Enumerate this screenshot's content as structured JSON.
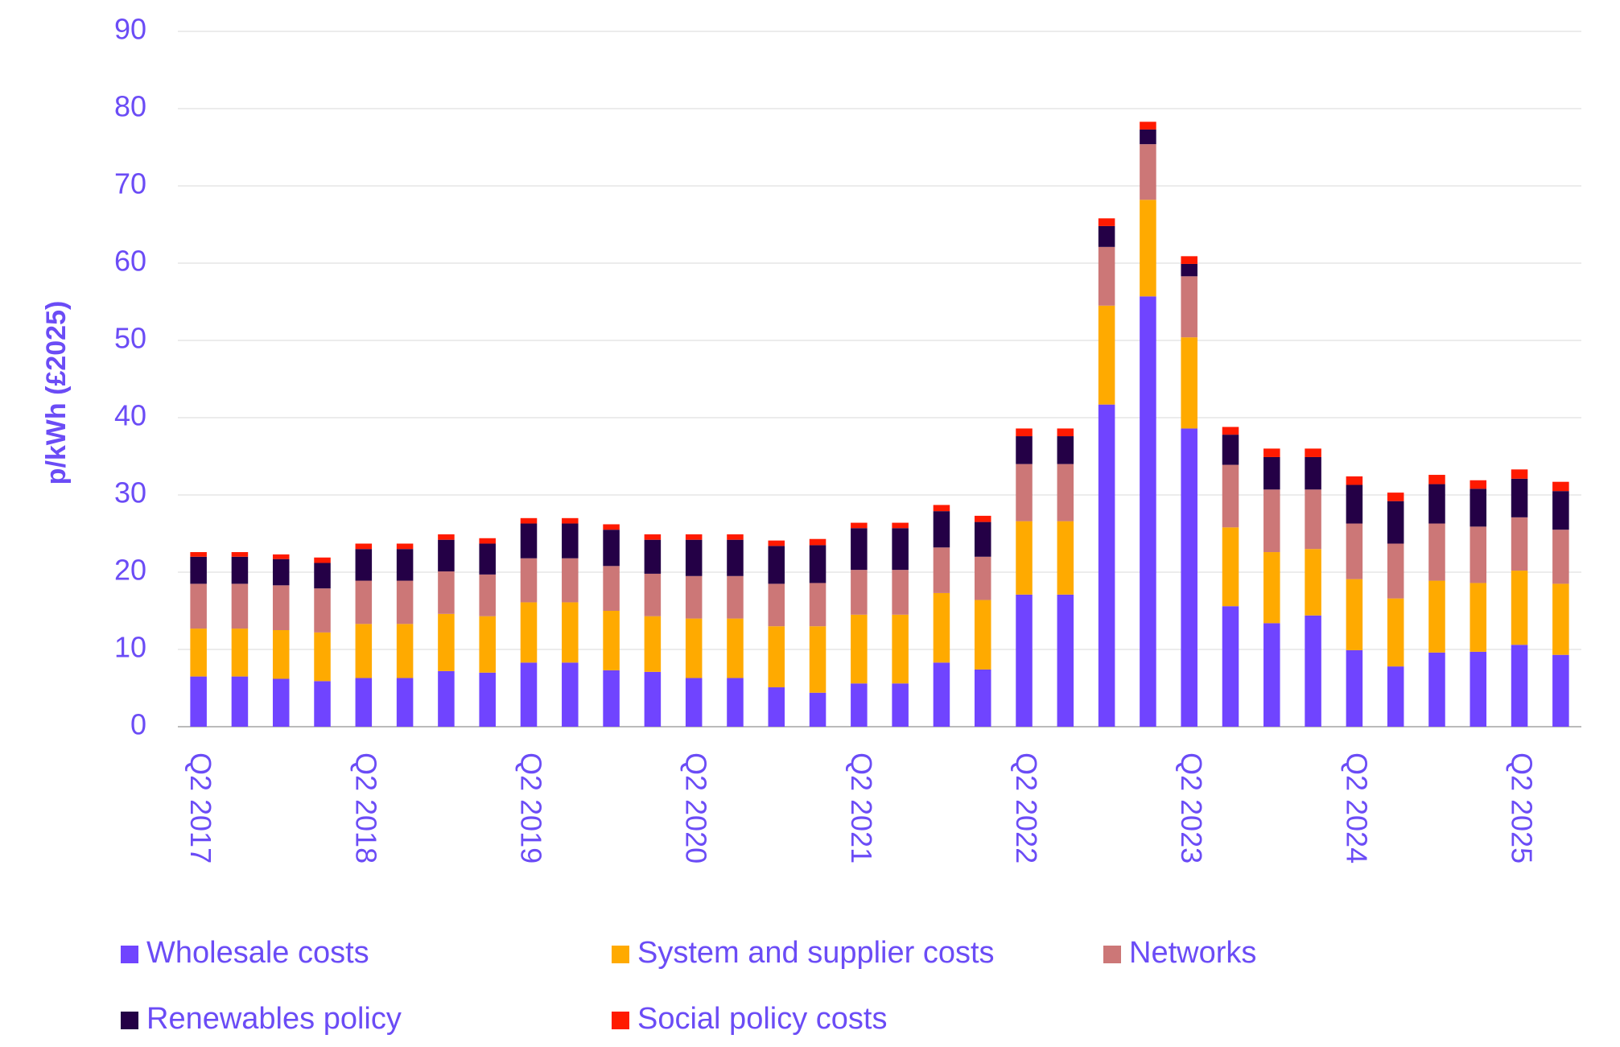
{
  "chart_data": {
    "type": "stacked_bar",
    "y_label": "p/kWh (£2025)",
    "categories": [
      "Q2 2017",
      null,
      null,
      null,
      "Q2 2018",
      null,
      null,
      null,
      "Q2 2019",
      null,
      null,
      null,
      "Q2 2020",
      null,
      null,
      null,
      "Q2 2021",
      null,
      null,
      null,
      "Q2 2022",
      null,
      null,
      null,
      "Q2 2023",
      null,
      null,
      null,
      "Q2 2024",
      null,
      null,
      null,
      "Q2 2025",
      null
    ],
    "series": [
      {
        "name": "Wholesale costs",
        "color": "#7044ff",
        "values": [
          6.5,
          6.5,
          6.2,
          5.9,
          6.3,
          6.3,
          7.2,
          7.0,
          8.3,
          8.3,
          7.3,
          7.1,
          6.3,
          6.3,
          5.1,
          4.4,
          5.6,
          5.6,
          8.3,
          7.4,
          17.1,
          17.1,
          41.7,
          55.7,
          38.6,
          15.6,
          13.4,
          14.4,
          9.9,
          7.8,
          9.6,
          9.7,
          10.6,
          9.3
        ]
      },
      {
        "name": "System and supplier costs",
        "color": "#ffaa00",
        "values": [
          6.2,
          6.2,
          6.3,
          6.3,
          7.0,
          7.0,
          7.4,
          7.3,
          7.8,
          7.8,
          7.7,
          7.2,
          7.7,
          7.7,
          7.9,
          8.6,
          8.9,
          8.9,
          9.0,
          9.0,
          9.5,
          9.5,
          12.8,
          12.5,
          11.8,
          10.2,
          9.2,
          8.6,
          9.2,
          8.8,
          9.3,
          8.9,
          9.6,
          9.2
        ]
      },
      {
        "name": "Networks",
        "color": "#cc7777",
        "values": [
          5.8,
          5.8,
          5.8,
          5.7,
          5.6,
          5.6,
          5.5,
          5.4,
          5.7,
          5.7,
          5.8,
          5.5,
          5.5,
          5.5,
          5.5,
          5.6,
          5.8,
          5.8,
          5.9,
          5.6,
          7.4,
          7.4,
          7.6,
          7.2,
          7.9,
          8.1,
          8.1,
          7.7,
          7.2,
          7.1,
          7.4,
          7.3,
          6.9,
          7.0
        ]
      },
      {
        "name": "Renewables policy",
        "color": "#240046",
        "values": [
          3.5,
          3.5,
          3.4,
          3.3,
          4.1,
          4.1,
          4.1,
          4.0,
          4.5,
          4.5,
          4.7,
          4.4,
          4.7,
          4.7,
          4.9,
          4.9,
          5.4,
          5.4,
          4.7,
          4.5,
          3.6,
          3.6,
          2.7,
          1.9,
          1.6,
          3.9,
          4.2,
          4.2,
          5.0,
          5.5,
          5.1,
          4.9,
          5.0,
          5.0
        ]
      },
      {
        "name": "Social policy costs",
        "color": "#ff1a00",
        "values": [
          0.6,
          0.6,
          0.6,
          0.7,
          0.7,
          0.7,
          0.7,
          0.7,
          0.7,
          0.7,
          0.7,
          0.7,
          0.7,
          0.7,
          0.7,
          0.8,
          0.7,
          0.7,
          0.8,
          0.8,
          1.0,
          1.0,
          1.0,
          1.0,
          1.0,
          1.0,
          1.1,
          1.1,
          1.1,
          1.1,
          1.2,
          1.1,
          1.2,
          1.2
        ]
      }
    ],
    "ylim": [
      0,
      90
    ],
    "yticks": [
      0,
      10,
      20,
      30,
      40,
      50,
      60,
      70,
      80,
      90
    ],
    "grid": true
  }
}
